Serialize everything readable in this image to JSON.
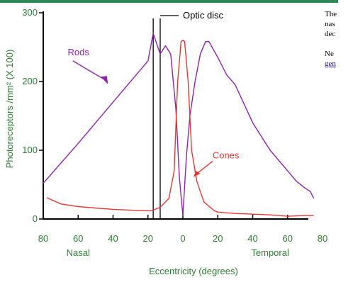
{
  "chart_data": {
    "type": "line",
    "title": "",
    "xlabel": "Eccentricity (degrees)",
    "ylabel": "Photoreceptors /mm² (X 100)",
    "x_ticks": [
      -80,
      -60,
      -40,
      -20,
      0,
      20,
      40,
      60,
      80
    ],
    "x_tick_labels": [
      "80",
      "60",
      "40",
      "20",
      "0",
      "20",
      "40",
      "60",
      "80"
    ],
    "y_ticks": [
      0,
      100,
      200,
      300
    ],
    "xlim": [
      -80,
      80
    ],
    "ylim": [
      0,
      300
    ],
    "x_region_labels": {
      "left": "Nasal",
      "right": "Temporal"
    },
    "optic_disc": {
      "label": "Optic disc",
      "x_range": [
        -17,
        -13
      ]
    },
    "series": [
      {
        "name": "Rods",
        "color": "#8e24aa",
        "x": [
          -80,
          -60,
          -40,
          -20,
          -17,
          -13,
          -10,
          -7,
          -4,
          -2,
          0,
          2,
          4,
          7,
          10,
          13,
          15,
          20,
          25,
          30,
          40,
          50,
          60,
          65,
          70,
          73,
          75
        ],
        "y": [
          52,
          110,
          170,
          230,
          270,
          240,
          252,
          240,
          160,
          60,
          5,
          90,
          150,
          200,
          240,
          258,
          258,
          235,
          210,
          195,
          140,
          100,
          70,
          55,
          45,
          40,
          30
        ]
      },
      {
        "name": "Cones",
        "color": "#e53935",
        "x": [
          -78,
          -70,
          -60,
          -50,
          -40,
          -30,
          -20,
          -18,
          -13,
          -8,
          -5,
          -3,
          -1,
          0,
          1,
          3,
          5,
          8,
          12,
          18,
          20,
          30,
          40,
          50,
          60,
          70,
          75
        ],
        "y": [
          31,
          22,
          18,
          16,
          14,
          13,
          12,
          12,
          17,
          30,
          70,
          200,
          258,
          260,
          258,
          200,
          100,
          55,
          25,
          12,
          10,
          8,
          7,
          6,
          4,
          5,
          5
        ]
      }
    ],
    "annotations": [
      {
        "text": "Rods",
        "color": "#8e24aa",
        "points_to_x": -60,
        "points_to_y": 190
      },
      {
        "text": "Cones",
        "color": "#e53935",
        "points_to_x": 10,
        "points_to_y": 70
      }
    ]
  },
  "side_text": {
    "line1": "The",
    "line2": "nas",
    "line3": "dec",
    "line4": "Ne",
    "link": "gen"
  }
}
